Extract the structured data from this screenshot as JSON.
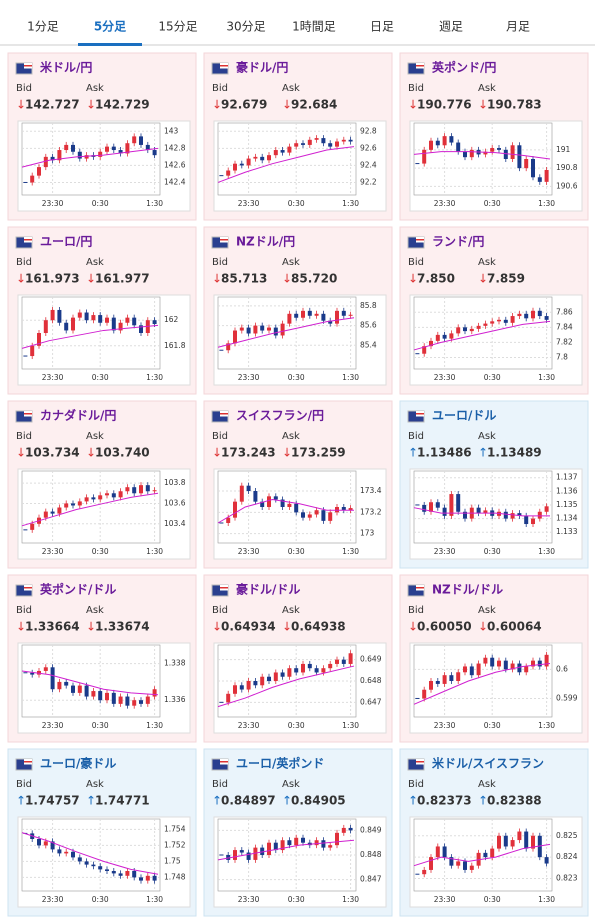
{
  "tabs": [
    "1分足",
    "5分足",
    "15分足",
    "30分足",
    "1時間足",
    "日足",
    "週足",
    "月足"
  ],
  "active_tab": 1,
  "bid_label": "Bid",
  "ask_label": "Ask",
  "xticks": [
    {
      "value": 4,
      "label": "23:30"
    },
    {
      "value": 11,
      "label": "0:30"
    },
    {
      "value": 19,
      "label": "1:30"
    }
  ],
  "cards": [
    {
      "name": "米ドル/円",
      "theme": "pink",
      "arrow": "↓",
      "arrow_color": "#d33",
      "bid": "142.727",
      "ask": "142.729",
      "ylim": [
        142.3,
        143.05
      ],
      "yticks": [
        142.4,
        142.6,
        142.8,
        143
      ],
      "closes": [
        142.4,
        142.48,
        142.58,
        142.7,
        142.66,
        142.78,
        142.84,
        142.76,
        142.68,
        142.72,
        142.7,
        142.76,
        142.82,
        142.78,
        142.74,
        142.86,
        142.94,
        142.84,
        142.78,
        142.72
      ],
      "ma": [
        142.58,
        142.66,
        142.7,
        142.72,
        142.76,
        142.8
      ]
    },
    {
      "name": "豪ドル/円",
      "theme": "pink",
      "arrow": "↓",
      "arrow_color": "#d33",
      "bid": "92.679",
      "ask": "92.684",
      "ylim": [
        92.1,
        92.85
      ],
      "yticks": [
        92.2,
        92.4,
        92.6,
        92.8
      ],
      "closes": [
        92.28,
        92.34,
        92.42,
        92.4,
        92.48,
        92.5,
        92.46,
        92.52,
        92.58,
        92.55,
        92.62,
        92.66,
        92.64,
        92.7,
        92.72,
        92.66,
        92.62,
        92.68,
        92.7,
        92.68
      ],
      "ma": [
        92.2,
        92.32,
        92.42,
        92.5,
        92.58,
        92.62
      ]
    },
    {
      "name": "英ポンド/円",
      "theme": "pink",
      "arrow": "↓",
      "arrow_color": "#d33",
      "bid": "190.776",
      "ask": "190.783",
      "ylim": [
        190.55,
        191.25
      ],
      "yticks": [
        190.6,
        190.8,
        191
      ],
      "closes": [
        190.85,
        191.0,
        191.1,
        191.05,
        191.15,
        191.08,
        190.98,
        190.92,
        191.0,
        190.95,
        190.98,
        191.02,
        191.0,
        190.9,
        191.05,
        190.8,
        190.9,
        190.7,
        190.65,
        190.78
      ],
      "ma": [
        190.95,
        190.98,
        190.98,
        190.97,
        190.94,
        190.9
      ]
    },
    {
      "name": "ユーロ/円",
      "theme": "pink",
      "arrow": "↓",
      "arrow_color": "#d33",
      "bid": "161.973",
      "ask": "161.977",
      "ylim": [
        161.65,
        162.15
      ],
      "yticks": [
        161.8,
        162
      ],
      "closes": [
        161.72,
        161.8,
        161.9,
        162.0,
        162.08,
        161.98,
        161.92,
        162.02,
        162.06,
        162.0,
        162.04,
        161.98,
        162.02,
        161.92,
        161.98,
        162.02,
        161.96,
        161.9,
        162.0,
        161.97
      ],
      "ma": [
        161.78,
        161.84,
        161.88,
        161.92,
        161.94,
        161.96
      ]
    },
    {
      "name": "NZドル/円",
      "theme": "pink",
      "arrow": "↓",
      "arrow_color": "#d33",
      "bid": "85.713",
      "ask": "85.720",
      "ylim": [
        85.2,
        85.85
      ],
      "yticks": [
        85.4,
        85.6,
        85.8
      ],
      "closes": [
        85.35,
        85.42,
        85.55,
        85.58,
        85.52,
        85.6,
        85.55,
        85.58,
        85.5,
        85.62,
        85.72,
        85.68,
        85.75,
        85.7,
        85.72,
        85.65,
        85.62,
        85.75,
        85.7,
        85.71
      ],
      "ma": [
        85.38,
        85.45,
        85.52,
        85.58,
        85.64,
        85.68
      ]
    },
    {
      "name": "ランド/円",
      "theme": "pink",
      "arrow": "↓",
      "arrow_color": "#d33",
      "bid": "7.850",
      "ask": "7.859",
      "ylim": [
        7.79,
        7.875
      ],
      "yticks": [
        7.8,
        7.82,
        7.84,
        7.86
      ],
      "closes": [
        7.805,
        7.815,
        7.822,
        7.83,
        7.825,
        7.832,
        7.84,
        7.835,
        7.838,
        7.842,
        7.845,
        7.848,
        7.85,
        7.846,
        7.855,
        7.858,
        7.852,
        7.862,
        7.855,
        7.85
      ],
      "ma": [
        7.81,
        7.82,
        7.828,
        7.836,
        7.844,
        7.848
      ]
    },
    {
      "name": "カナダドル/円",
      "theme": "pink",
      "arrow": "↓",
      "arrow_color": "#d33",
      "bid": "103.734",
      "ask": "103.740",
      "ylim": [
        103.25,
        103.88
      ],
      "yticks": [
        103.4,
        103.6,
        103.8
      ],
      "closes": [
        103.34,
        103.4,
        103.46,
        103.52,
        103.5,
        103.56,
        103.6,
        103.58,
        103.62,
        103.66,
        103.64,
        103.68,
        103.7,
        103.66,
        103.72,
        103.76,
        103.7,
        103.78,
        103.72,
        103.73
      ],
      "ma": [
        103.38,
        103.46,
        103.54,
        103.6,
        103.66,
        103.7
      ]
    },
    {
      "name": "スイスフラン/円",
      "theme": "pink",
      "arrow": "↓",
      "arrow_color": "#d33",
      "bid": "173.243",
      "ask": "173.259",
      "ylim": [
        172.95,
        173.55
      ],
      "yticks": [
        173,
        173.2,
        173.4
      ],
      "closes": [
        173.1,
        173.15,
        173.3,
        173.45,
        173.4,
        173.3,
        173.25,
        173.35,
        173.32,
        173.25,
        173.28,
        173.2,
        173.15,
        173.18,
        173.22,
        173.12,
        173.2,
        173.25,
        173.22,
        173.24
      ],
      "ma": [
        173.1,
        173.25,
        173.32,
        173.28,
        173.22,
        173.22
      ]
    },
    {
      "name": "ユーロ/ドル",
      "theme": "blue",
      "arrow": "↑",
      "arrow_color": "#1a6fc0",
      "bid": "1.13486",
      "ask": "1.13489",
      "ylim": [
        1.1325,
        1.1372
      ],
      "yticks": [
        1.133,
        1.134,
        1.135,
        1.136,
        1.137
      ],
      "closes": [
        1.135,
        1.1345,
        1.1352,
        1.1348,
        1.1342,
        1.1358,
        1.1345,
        1.134,
        1.1348,
        1.1344,
        1.1346,
        1.1342,
        1.1345,
        1.134,
        1.1344,
        1.1342,
        1.1336,
        1.134,
        1.1345,
        1.1349
      ],
      "ma": [
        1.1348,
        1.1344,
        1.1344,
        1.1344,
        1.1342,
        1.1342
      ]
    },
    {
      "name": "英ポンド/ドル",
      "theme": "pink",
      "arrow": "↓",
      "arrow_color": "#d33",
      "bid": "1.33664",
      "ask": "1.33674",
      "ylim": [
        1.3353,
        1.3388
      ],
      "yticks": [
        1.336,
        1.338
      ],
      "closes": [
        1.3375,
        1.3374,
        1.3376,
        1.3378,
        1.3366,
        1.337,
        1.3368,
        1.3364,
        1.3368,
        1.3362,
        1.3365,
        1.336,
        1.3364,
        1.3358,
        1.3362,
        1.3357,
        1.336,
        1.3358,
        1.3362,
        1.3366
      ],
      "ma": [
        1.3376,
        1.3374,
        1.337,
        1.3366,
        1.3364,
        1.3363
      ]
    },
    {
      "name": "豪ドル/ドル",
      "theme": "pink",
      "arrow": "↓",
      "arrow_color": "#d33",
      "bid": "0.64934",
      "ask": "0.64938",
      "ylim": [
        0.6465,
        0.6495
      ],
      "yticks": [
        0.647,
        0.648,
        0.649
      ],
      "closes": [
        0.647,
        0.6474,
        0.6478,
        0.6476,
        0.648,
        0.6478,
        0.6482,
        0.648,
        0.6484,
        0.6482,
        0.6486,
        0.6484,
        0.6488,
        0.6486,
        0.6484,
        0.6486,
        0.6488,
        0.649,
        0.6488,
        0.6493
      ],
      "ma": [
        0.6468,
        0.6472,
        0.6477,
        0.6481,
        0.6484,
        0.6487
      ]
    },
    {
      "name": "NZドル/ドル",
      "theme": "pink",
      "arrow": "↓",
      "arrow_color": "#d33",
      "bid": "0.60050",
      "ask": "0.60064",
      "ylim": [
        0.5985,
        0.6007
      ],
      "yticks": [
        0.599,
        0.6
      ],
      "closes": [
        0.599,
        0.5993,
        0.5996,
        0.5995,
        0.5998,
        0.5996,
        0.5999,
        0.6001,
        0.5998,
        0.6002,
        0.6004,
        0.6001,
        0.6003,
        0.6,
        0.6002,
        0.5999,
        0.6001,
        0.6003,
        0.6001,
        0.6005
      ],
      "ma": [
        0.5988,
        0.5992,
        0.5996,
        0.5999,
        0.6001,
        0.6002
      ]
    },
    {
      "name": "ユーロ/豪ドル",
      "theme": "blue",
      "arrow": "↑",
      "arrow_color": "#1a6fc0",
      "bid": "1.74757",
      "ask": "1.74771",
      "ylim": [
        1.7468,
        1.7548
      ],
      "yticks": [
        1.748,
        1.75,
        1.752,
        1.754
      ],
      "closes": [
        1.7535,
        1.7528,
        1.752,
        1.7525,
        1.7515,
        1.751,
        1.7512,
        1.7505,
        1.75,
        1.7496,
        1.7494,
        1.749,
        1.7488,
        1.7485,
        1.7482,
        1.7488,
        1.748,
        1.7476,
        1.7482,
        1.7476
      ],
      "ma": [
        1.7536,
        1.7525,
        1.7512,
        1.75,
        1.749,
        1.7484
      ]
    },
    {
      "name": "ユーロ/英ポンド",
      "theme": "blue",
      "arrow": "↑",
      "arrow_color": "#1a6fc0",
      "bid": "0.84897",
      "ask": "0.84905",
      "ylim": [
        0.8467,
        0.8493
      ],
      "yticks": [
        0.847,
        0.848,
        0.849
      ],
      "closes": [
        0.848,
        0.8478,
        0.8482,
        0.8481,
        0.8478,
        0.8483,
        0.848,
        0.8485,
        0.8482,
        0.8486,
        0.8484,
        0.8487,
        0.8485,
        0.8484,
        0.8486,
        0.8483,
        0.8484,
        0.8489,
        0.8491,
        0.849
      ],
      "ma": [
        0.8478,
        0.848,
        0.8482,
        0.8484,
        0.8485,
        0.8486
      ]
    },
    {
      "name": "米ドル/スイスフラン",
      "theme": "blue",
      "arrow": "↑",
      "arrow_color": "#1a6fc0",
      "bid": "0.82373",
      "ask": "0.82388",
      "ylim": [
        0.8226,
        0.8256
      ],
      "yticks": [
        0.823,
        0.824,
        0.825
      ],
      "closes": [
        0.8232,
        0.8234,
        0.824,
        0.8245,
        0.824,
        0.8236,
        0.8238,
        0.8234,
        0.8236,
        0.8242,
        0.824,
        0.8244,
        0.825,
        0.8245,
        0.8248,
        0.8252,
        0.8244,
        0.825,
        0.824,
        0.8237
      ],
      "ma": [
        0.8236,
        0.824,
        0.8238,
        0.824,
        0.8244,
        0.8246
      ]
    }
  ]
}
